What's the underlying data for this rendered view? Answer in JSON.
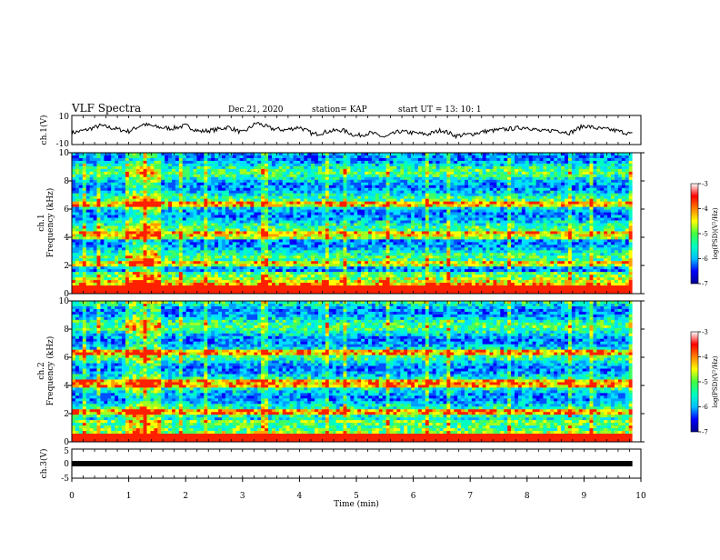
{
  "header": {
    "title": "VLF Spectra",
    "date": "Dec.21, 2020",
    "station": "station= KAP",
    "start": "start  UT =   13: 10: 1"
  },
  "colorbar": {
    "label": "log(PSD)(V²/Hz)",
    "ticks": [
      "-3",
      "-4",
      "-5",
      "-6",
      "-7"
    ],
    "range": [
      -7,
      -3
    ],
    "colors": [
      "#00008f",
      "#0000ff",
      "#00bfff",
      "#00ffbf",
      "#40ff40",
      "#ffff00",
      "#ff8000",
      "#ff0000",
      "#ffffff"
    ]
  },
  "chart_data": [
    {
      "type": "line",
      "ylabel": "ch.1(V)",
      "ylim": [
        -10,
        10
      ],
      "yticks": [
        "10",
        "-10"
      ],
      "xlim": [
        0,
        10
      ],
      "x": [
        0.0,
        0.25,
        0.5,
        0.75,
        1.0,
        1.25,
        1.5,
        1.75,
        2.0,
        2.25,
        2.5,
        2.75,
        3.0,
        3.25,
        3.5,
        3.75,
        4.0,
        4.25,
        4.5,
        4.75,
        5.0,
        5.25,
        5.5,
        5.75,
        6.0,
        6.25,
        6.5,
        6.75,
        7.0,
        7.25,
        7.5,
        7.75,
        8.0,
        8.25,
        8.5,
        8.75,
        9.0,
        9.25,
        9.5,
        9.75,
        9.85
      ],
      "values": [
        -2,
        0,
        3,
        1,
        -1,
        4,
        2,
        1,
        3,
        -1,
        0,
        2,
        -2,
        5,
        1,
        0,
        2,
        -3,
        -1,
        0,
        -4,
        -2,
        -5,
        -1,
        -2,
        -3,
        0,
        -4,
        -3,
        -1,
        0,
        1,
        2,
        -1,
        0,
        -2,
        3,
        1,
        0,
        -2,
        -3
      ]
    },
    {
      "type": "heatmap",
      "ylabel": "ch.1\nFrequency (kHz)",
      "ylim": [
        0,
        10
      ],
      "yticks": [
        "0",
        "2",
        "4",
        "6",
        "8",
        "10"
      ],
      "xlim": [
        0,
        10
      ],
      "value_range": [
        -7,
        -3
      ]
    },
    {
      "type": "heatmap",
      "ylabel": "ch.2\nFrequency (kHz)",
      "ylim": [
        0,
        10
      ],
      "yticks": [
        "0",
        "2",
        "4",
        "6",
        "8",
        "10"
      ],
      "xlim": [
        0,
        10
      ],
      "value_range": [
        -7,
        -3
      ]
    },
    {
      "type": "line",
      "ylabel": "ch.3(V)",
      "ylim": [
        -5,
        5
      ],
      "yticks": [
        "5",
        "0",
        "-5"
      ],
      "xlim": [
        0,
        10
      ],
      "x": [
        0,
        9.85
      ],
      "values": [
        0,
        0
      ],
      "xlabel": "Time (min)",
      "xticks": [
        "0",
        "1",
        "2",
        "3",
        "4",
        "5",
        "6",
        "7",
        "8",
        "9",
        "10"
      ]
    }
  ]
}
